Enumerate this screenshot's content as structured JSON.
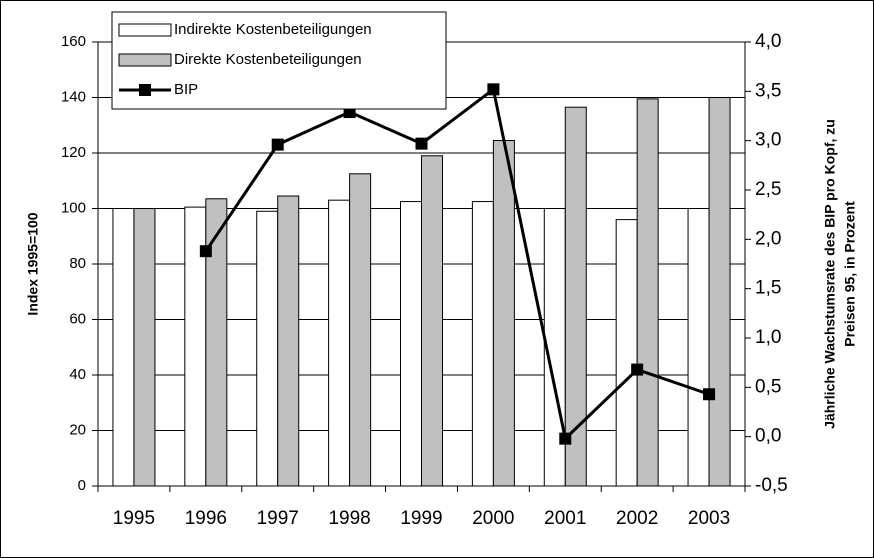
{
  "chart_data": {
    "type": "bar_line",
    "categories": [
      "1995",
      "1996",
      "1997",
      "1998",
      "1999",
      "2000",
      "2001",
      "2002",
      "2003"
    ],
    "series": [
      {
        "name": "Indirekte Kostenbeteiligungen",
        "color": "#ffffff",
        "type": "bar",
        "values": [
          100,
          100.5,
          99,
          103,
          102.5,
          102.5,
          100,
          96,
          100
        ]
      },
      {
        "name": "Direkte Kostenbeteiligungen",
        "color": "#c0c0c0",
        "type": "bar",
        "values": [
          100,
          103.5,
          104.5,
          112.5,
          119,
          124.5,
          136.5,
          139.5,
          140
        ]
      },
      {
        "name": "BIP",
        "color": "#000000",
        "type": "line",
        "axis": "y2",
        "values": [
          null,
          1.88,
          2.96,
          3.29,
          2.97,
          3.52,
          -0.02,
          0.68,
          0.43
        ]
      }
    ],
    "ylabel": "Index 1995=100",
    "y2label": [
      "Jährliche Wachstumsrate des BIP pro Kopf, zu",
      "Preisen 95, in Prozent"
    ],
    "ylim": [
      0,
      160
    ],
    "yticks": [
      0,
      20,
      40,
      60,
      80,
      100,
      120,
      140,
      160
    ],
    "y2lim": [
      -0.5,
      4.0
    ],
    "y2ticks": [
      {
        "value": -0.5,
        "label": "-0,5"
      },
      {
        "value": 0,
        "label": "0,0"
      },
      {
        "value": 0.5,
        "label": "0,5"
      },
      {
        "value": 1.0,
        "label": "1,0"
      },
      {
        "value": 1.5,
        "label": "1,5"
      },
      {
        "value": 2.0,
        "label": "2,0"
      },
      {
        "value": 2.5,
        "label": "2,5"
      },
      {
        "value": 3.0,
        "label": "3,0"
      },
      {
        "value": 3.5,
        "label": "3,5"
      },
      {
        "value": 4.0,
        "label": "4,0"
      }
    ],
    "grid": true,
    "legend": "upper left"
  }
}
